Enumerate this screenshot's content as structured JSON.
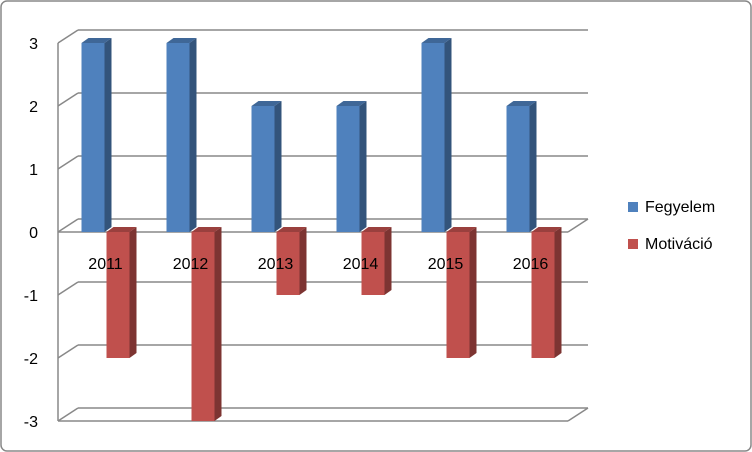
{
  "chart_data": {
    "type": "bar3d",
    "categories": [
      "2011",
      "2012",
      "2013",
      "2014",
      "2015",
      "2016"
    ],
    "series": [
      {
        "name": "Fegyelem",
        "color": "#4f81bd",
        "values": [
          3,
          3,
          2,
          2,
          3,
          2
        ]
      },
      {
        "name": "Motiváció",
        "color": "#c0504d",
        "values": [
          -2,
          -3,
          -1,
          -1,
          -2,
          -2
        ]
      }
    ],
    "ylim": [
      -3,
      3
    ],
    "yticks": [
      -3,
      -2,
      -1,
      0,
      1,
      2,
      3
    ],
    "grid": true,
    "legend": "right"
  }
}
